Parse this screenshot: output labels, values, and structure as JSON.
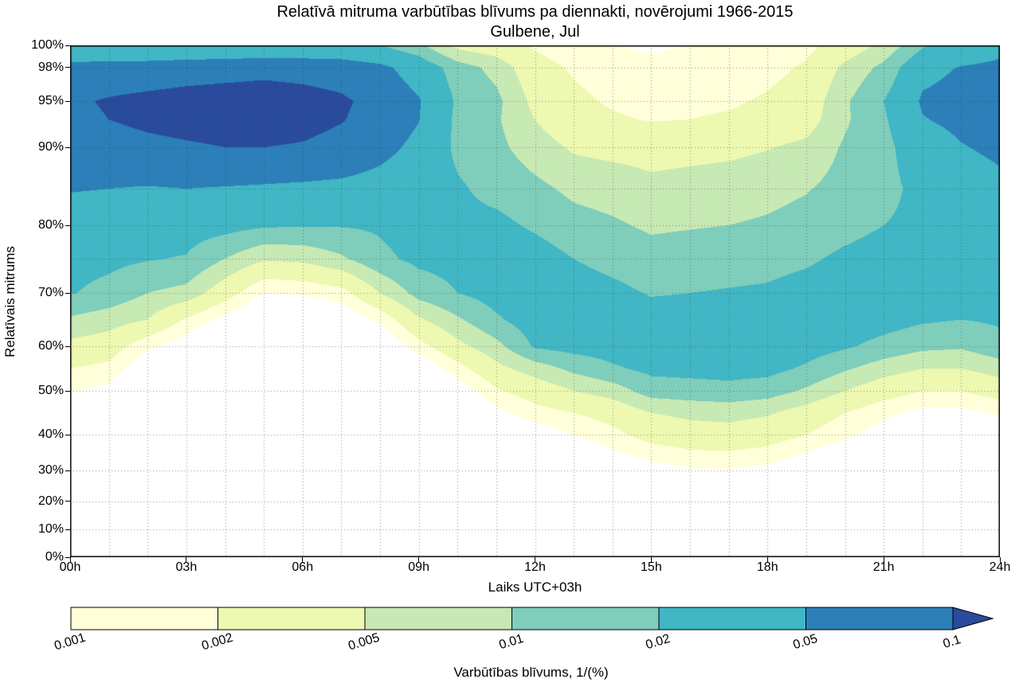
{
  "title": {
    "line1": "Relatīvā mitruma varbūtības blīvums pa diennakti, novērojumi 1966-2015",
    "line2": "Gulbene, Jul"
  },
  "axes": {
    "x_label": "Laiks UTC+03h",
    "y_label": "Relatīvais mitrums",
    "x_ticks": [
      {
        "h": 0,
        "label": "00h"
      },
      {
        "h": 3,
        "label": "03h"
      },
      {
        "h": 6,
        "label": "06h"
      },
      {
        "h": 9,
        "label": "09h"
      },
      {
        "h": 12,
        "label": "12h"
      },
      {
        "h": 15,
        "label": "15h"
      },
      {
        "h": 18,
        "label": "18h"
      },
      {
        "h": 21,
        "label": "21h"
      },
      {
        "h": 24,
        "label": "24h"
      }
    ],
    "y_ticks": [
      {
        "rh": 0,
        "label": "0%"
      },
      {
        "rh": 10,
        "label": "10%"
      },
      {
        "rh": 20,
        "label": "20%"
      },
      {
        "rh": 30,
        "label": "30%"
      },
      {
        "rh": 40,
        "label": "40%"
      },
      {
        "rh": 50,
        "label": "50%"
      },
      {
        "rh": 60,
        "label": "60%"
      },
      {
        "rh": 70,
        "label": "70%"
      },
      {
        "rh": 80,
        "label": "80%"
      },
      {
        "rh": 90,
        "label": "90%"
      },
      {
        "rh": 95,
        "label": "95%"
      },
      {
        "rh": 98,
        "label": "98%"
      },
      {
        "rh": 100,
        "label": "100%"
      }
    ]
  },
  "colorbar": {
    "label": "Varbūtības blīvums, 1/(%)",
    "tick_labels": [
      "0.001",
      "0.002",
      "0.005",
      "0.01",
      "0.02",
      "0.05",
      "0.1"
    ]
  },
  "chart_data": {
    "type": "heatmap",
    "subtype": "filled-contour",
    "title": "Relatīvā mitruma varbūtības blīvums pa diennakti, novērojumi 1966-2015",
    "subtitle": "Gulbene, Jul",
    "xlabel": "Laiks UTC+03h",
    "ylabel": "Relatīvais mitrums",
    "xlim": [
      0,
      24
    ],
    "ylim": [
      0,
      100
    ],
    "x_hours": [
      0,
      1,
      2,
      3,
      4,
      5,
      6,
      7,
      8,
      9,
      10,
      11,
      12,
      13,
      14,
      15,
      16,
      17,
      18,
      19,
      20,
      21,
      22,
      23,
      24
    ],
    "rh_levels": [
      100,
      98,
      95,
      93,
      90,
      85,
      80,
      75,
      70,
      65,
      60,
      55,
      50,
      45,
      40,
      35,
      30,
      25,
      20,
      10,
      0
    ],
    "density": [
      [
        0.022,
        0.022,
        0.023,
        0.024,
        0.024,
        0.025,
        0.025,
        0.024,
        0.02,
        0.012,
        0.004,
        0.003,
        0.0018,
        0.0012,
        0.001,
        0.0009,
        0.001,
        0.0011,
        0.0013,
        0.0016,
        0.003,
        0.006,
        0.018,
        0.03,
        0.04
      ],
      [
        0.065,
        0.07,
        0.07,
        0.075,
        0.08,
        0.085,
        0.082,
        0.078,
        0.06,
        0.035,
        0.014,
        0.008,
        0.0028,
        0.0018,
        0.0014,
        0.0012,
        0.0013,
        0.0014,
        0.0016,
        0.0022,
        0.006,
        0.012,
        0.04,
        0.052,
        0.058
      ],
      [
        0.092,
        0.105,
        0.116,
        0.126,
        0.13,
        0.132,
        0.122,
        0.108,
        0.085,
        0.053,
        0.018,
        0.012,
        0.004,
        0.0024,
        0.0018,
        0.0016,
        0.0017,
        0.0018,
        0.0022,
        0.003,
        0.009,
        0.02,
        0.055,
        0.065,
        0.072
      ],
      [
        0.088,
        0.1,
        0.112,
        0.12,
        0.126,
        0.125,
        0.118,
        0.103,
        0.08,
        0.051,
        0.017,
        0.011,
        0.005,
        0.0028,
        0.0022,
        0.0019,
        0.002,
        0.0022,
        0.0026,
        0.0035,
        0.009,
        0.018,
        0.048,
        0.06,
        0.068
      ],
      [
        0.072,
        0.08,
        0.088,
        0.094,
        0.1,
        0.1,
        0.096,
        0.085,
        0.062,
        0.042,
        0.017,
        0.012,
        0.007,
        0.0045,
        0.004,
        0.0038,
        0.004,
        0.0042,
        0.0048,
        0.006,
        0.011,
        0.016,
        0.034,
        0.048,
        0.058
      ],
      [
        0.052,
        0.05,
        0.048,
        0.05,
        0.048,
        0.046,
        0.044,
        0.042,
        0.038,
        0.032,
        0.022,
        0.016,
        0.012,
        0.0085,
        0.0075,
        0.006,
        0.0065,
        0.007,
        0.008,
        0.0095,
        0.013,
        0.016,
        0.025,
        0.034,
        0.042
      ],
      [
        0.036,
        0.034,
        0.03,
        0.028,
        0.026,
        0.022,
        0.021,
        0.021,
        0.022,
        0.027,
        0.024,
        0.024,
        0.018,
        0.013,
        0.011,
        0.009,
        0.0095,
        0.01,
        0.011,
        0.013,
        0.016,
        0.02,
        0.024,
        0.03,
        0.036
      ],
      [
        0.026,
        0.024,
        0.021,
        0.019,
        0.01,
        0.0055,
        0.006,
        0.009,
        0.017,
        0.024,
        0.026,
        0.03,
        0.028,
        0.02,
        0.016,
        0.013,
        0.014,
        0.015,
        0.016,
        0.018,
        0.023,
        0.027,
        0.028,
        0.028,
        0.03
      ],
      [
        0.021,
        0.016,
        0.01,
        0.008,
        0.003,
        0.001,
        0.0011,
        0.0015,
        0.005,
        0.013,
        0.02,
        0.027,
        0.034,
        0.028,
        0.024,
        0.019,
        0.02,
        0.021,
        0.022,
        0.026,
        0.03,
        0.032,
        0.029,
        0.026,
        0.026
      ],
      [
        0.009,
        0.007,
        0.005,
        0.0018,
        0.0008,
        0.0003,
        0.00035,
        0.0005,
        0.0012,
        0.0045,
        0.009,
        0.018,
        0.03,
        0.032,
        0.03,
        0.027,
        0.027,
        0.028,
        0.029,
        0.031,
        0.031,
        0.027,
        0.022,
        0.02,
        0.022
      ],
      [
        0.004,
        0.0032,
        0.0012,
        0.0006,
        0.0002,
        0.0001,
        0.0001,
        0.00015,
        0.0004,
        0.0015,
        0.004,
        0.008,
        0.022,
        0.026,
        0.028,
        0.03,
        0.03,
        0.031,
        0.031,
        0.028,
        0.022,
        0.016,
        0.012,
        0.011,
        0.016
      ],
      [
        0.002,
        0.0016,
        0.0005,
        0.0002,
        0.0001,
        5e-05,
        5e-05,
        0.0001,
        0.00015,
        0.0005,
        0.0015,
        0.004,
        0.007,
        0.012,
        0.018,
        0.024,
        0.025,
        0.026,
        0.025,
        0.018,
        0.011,
        0.007,
        0.005,
        0.005,
        0.007
      ],
      [
        0.001,
        0.0008,
        0.0002,
        0.0001,
        5e-05,
        2e-05,
        2e-05,
        2e-05,
        0.0001,
        0.0002,
        0.0006,
        0.0018,
        0.003,
        0.005,
        0.007,
        0.014,
        0.015,
        0.016,
        0.014,
        0.009,
        0.005,
        0.003,
        0.002,
        0.002,
        0.003
      ],
      [
        0.0005,
        0.0004,
        0.0001,
        2e-05,
        2e-05,
        1e-05,
        1e-05,
        1e-05,
        3e-05,
        0.0001,
        0.00025,
        0.0008,
        0.0015,
        0.002,
        0.0028,
        0.005,
        0.006,
        0.0065,
        0.0055,
        0.0035,
        0.002,
        0.0012,
        0.0008,
        0.0008,
        0.0011
      ],
      [
        0.0002,
        0.0002,
        0.0001,
        1e-05,
        1e-05,
        0,
        0,
        0,
        1e-05,
        5e-05,
        0.00015,
        0.0004,
        0.0006,
        0.001,
        0.0016,
        0.0028,
        0.0035,
        0.0036,
        0.003,
        0.002,
        0.0012,
        0.0007,
        0.0005,
        0.0004,
        0.0005
      ],
      [
        0.0001,
        0.0001,
        5e-05,
        0,
        0,
        0,
        0,
        0,
        0,
        0,
        0.0001,
        0.0002,
        0.0003,
        0.0005,
        0.0009,
        0.0014,
        0.0018,
        0.0019,
        0.0016,
        0.001,
        0.0006,
        0.00035,
        0.00025,
        0.0002,
        0.00025
      ],
      [
        5e-05,
        5e-05,
        0,
        0,
        0,
        0,
        0,
        0,
        0,
        0,
        0,
        0.0001,
        0.00015,
        0.00025,
        0.0004,
        0.0007,
        0.0009,
        0.00095,
        0.0008,
        0.0005,
        0.0003,
        0.00015,
        0.0001,
        0.0001,
        0.0001
      ],
      [
        0,
        0,
        0,
        0,
        0,
        0,
        0,
        0,
        0,
        0,
        0,
        0,
        0,
        0.0001,
        0.00015,
        0.00025,
        0.0004,
        0.0004,
        0.0003,
        0.0002,
        0.0001,
        0,
        0,
        0,
        0
      ],
      [
        0,
        0,
        0,
        0,
        0,
        0,
        0,
        0,
        0,
        0,
        0,
        0,
        0,
        0,
        0,
        0.0001,
        0.0001,
        0.0001,
        0.0001,
        0,
        0,
        0,
        0,
        0,
        0
      ],
      [
        0,
        0,
        0,
        0,
        0,
        0,
        0,
        0,
        0,
        0,
        0,
        0,
        0,
        0,
        0,
        0,
        0,
        0,
        0,
        0,
        0,
        0,
        0,
        0,
        0
      ],
      [
        0,
        0,
        0,
        0,
        0,
        0,
        0,
        0,
        0,
        0,
        0,
        0,
        0,
        0,
        0,
        0,
        0,
        0,
        0,
        0,
        0,
        0,
        0,
        0,
        0
      ]
    ],
    "levels": [
      0.001,
      0.002,
      0.005,
      0.01,
      0.02,
      0.05,
      0.1
    ],
    "band_colors": [
      "#ffffd9",
      "#edf8b1",
      "#c7e9b4",
      "#7fcdbb",
      "#41b6c4",
      "#2c7fb8"
    ],
    "over_color": "#2a4b9b",
    "under_color": "#ffffff",
    "y_axis_anchors": [
      {
        "rh": 100,
        "f": 0
      },
      {
        "rh": 98,
        "f": 0.0435
      },
      {
        "rh": 95,
        "f": 0.1089
      },
      {
        "rh": 90,
        "f": 0.1991
      },
      {
        "rh": 85,
        "f": 0.28
      },
      {
        "rh": 80,
        "f": 0.3515
      },
      {
        "rh": 75,
        "f": 0.4168
      },
      {
        "rh": 70,
        "f": 0.4837
      },
      {
        "rh": 60,
        "f": 0.5879
      },
      {
        "rh": 50,
        "f": 0.675
      },
      {
        "rh": 40,
        "f": 0.7605
      },
      {
        "rh": 30,
        "f": 0.8305
      },
      {
        "rh": 20,
        "f": 0.8911
      },
      {
        "rh": 10,
        "f": 0.9456
      },
      {
        "rh": 0,
        "f": 1
      }
    ],
    "y_grid_rh": [
      10,
      20,
      30,
      40,
      50,
      60,
      70,
      75,
      80,
      85,
      90,
      95,
      98
    ],
    "x_grid_step_hours": 1,
    "grid": "dotted",
    "legend_position": "bottom-colorbar"
  }
}
